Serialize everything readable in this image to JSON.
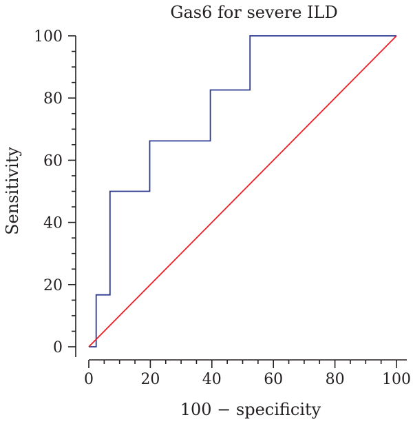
{
  "chart_data": {
    "type": "line",
    "title": "Gas6 for severe ILD",
    "xlabel": "100 − specificity",
    "ylabel": "Sensitivity",
    "xlim": [
      0,
      100
    ],
    "ylim": [
      0,
      100
    ],
    "x_ticks": [
      "0",
      "20",
      "40",
      "60",
      "80",
      "100"
    ],
    "y_ticks": [
      "0",
      "20",
      "40",
      "60",
      "80",
      "100"
    ],
    "grid": false,
    "series": [
      {
        "role": "roc-curve",
        "color": "#2b3990",
        "x": [
          0,
          0,
          2.4,
          2.4,
          6.9,
          6.9,
          19.8,
          19.8,
          39.5,
          39.5,
          52.4,
          52.4,
          100
        ],
        "y": [
          0,
          0,
          0,
          16.7,
          16.7,
          50,
          50,
          66.2,
          66.2,
          82.6,
          82.6,
          100,
          100
        ]
      },
      {
        "role": "reference-diagonal",
        "color": "#ed1c24",
        "x": [
          0,
          100
        ],
        "y": [
          0,
          100
        ]
      }
    ]
  }
}
